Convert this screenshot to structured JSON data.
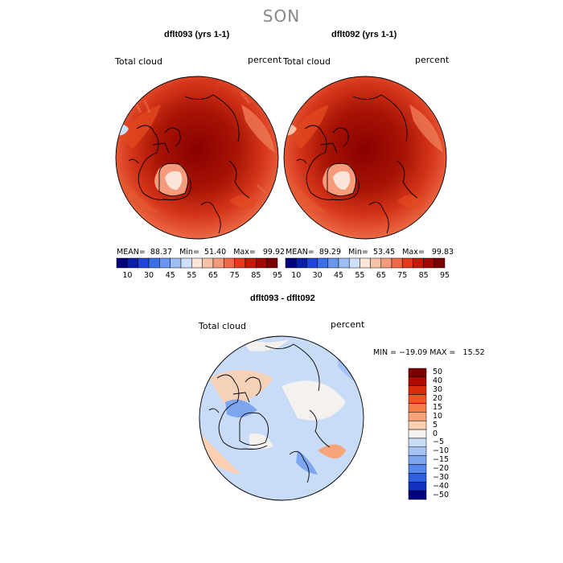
{
  "figure": {
    "season": "SON"
  },
  "panels": [
    {
      "title": "dflt093 (yrs 1-1)",
      "variable": "Total cloud",
      "units": "percent",
      "stats": {
        "mean_label": "MEAN=",
        "mean": "88.37",
        "min_label": "Min=",
        "min": "51.40",
        "max_label": "Max=",
        "max": "99.92"
      }
    },
    {
      "title": "dflt092 (yrs 1-1)",
      "variable": "Total cloud",
      "units": "percent",
      "stats": {
        "mean_label": "MEAN=",
        "mean": "89.29",
        "min_label": "Min=",
        "min": "53.45",
        "max_label": "Max=",
        "max": "99.83"
      }
    },
    {
      "title": "dflt093 - dflt092",
      "variable": "Total cloud",
      "units": "percent",
      "stats": {
        "text": "MIN = −19.09 MAX =   15.52"
      }
    }
  ],
  "colorbar_abs": {
    "colors": [
      "#00007f",
      "#0a1fa8",
      "#1f46d6",
      "#3b6fe8",
      "#6a96f0",
      "#9dbdf5",
      "#cfe0fa",
      "#fbe4d8",
      "#f8c2a8",
      "#f59a7a",
      "#ef6a4a",
      "#e33a1c",
      "#c41a08",
      "#9e0a02",
      "#7a0000"
    ],
    "tick_labels": [
      "10",
      "30",
      "45",
      "55",
      "65",
      "75",
      "85",
      "95"
    ]
  },
  "colorbar_diff": {
    "colors": [
      "#7a0000",
      "#b00a00",
      "#dc2a0e",
      "#ef5522",
      "#f47c46",
      "#f8a47a",
      "#fbcfb2",
      "#f5f1ee",
      "#c9dcf7",
      "#a4c3f4",
      "#7ea6ef",
      "#5687ea",
      "#2d5fe0",
      "#1033c4",
      "#000080"
    ],
    "tick_labels": [
      "50",
      "40",
      "30",
      "20",
      "15",
      "10",
      "5",
      "0",
      "−5",
      "−10",
      "−15",
      "−20",
      "−30",
      "−40",
      "−50"
    ]
  }
}
